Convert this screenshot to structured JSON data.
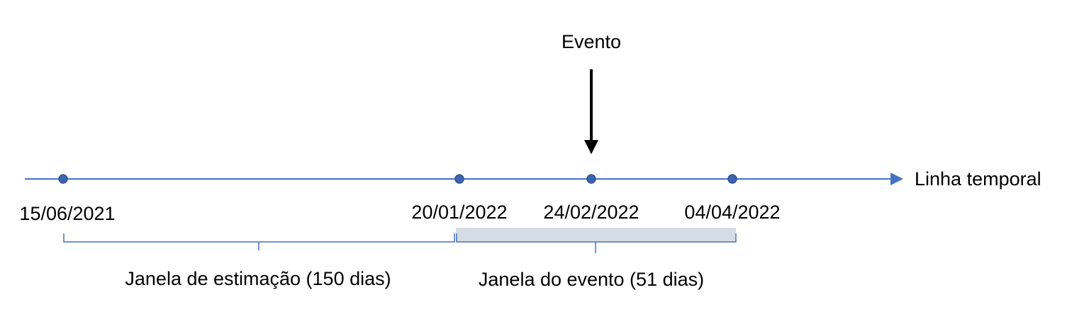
{
  "colors": {
    "axis": "#4472C4",
    "point_fill": "#3E64B0",
    "point_stroke": "#2F528F",
    "brace": "#4472C4",
    "event_window_fill": "#D6DCE5",
    "arrow": "#000000",
    "text": "#000000"
  },
  "timeline": {
    "axis_label": "Linha temporal",
    "points": [
      {
        "date": "15/06/2021"
      },
      {
        "date": "20/01/2022"
      },
      {
        "date": "24/02/2022"
      },
      {
        "date": "04/04/2022"
      }
    ]
  },
  "event": {
    "label": "Evento",
    "date": "24/02/2022"
  },
  "windows": {
    "estimation": {
      "label": "Janela de estimação (150 dias)"
    },
    "event": {
      "label": "Janela do evento (51 dias)"
    }
  }
}
